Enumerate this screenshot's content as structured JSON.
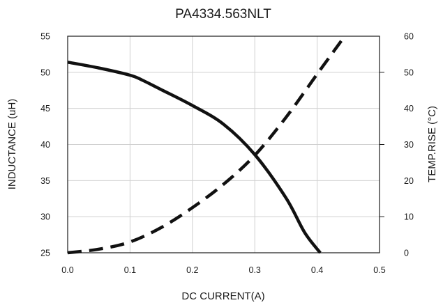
{
  "chart_data": {
    "type": "line",
    "title": "PA4334.563NLT",
    "xlabel": "DC CURRENT(A)",
    "ylabel_left": "INDUCTANCE (uH)",
    "ylabel_right": "TEMP.RISE (°C)",
    "x_ticks": [
      "0.0",
      "0.1",
      "0.2",
      "0.3",
      "0.4",
      "0.5"
    ],
    "y_left_ticks": [
      "25",
      "30",
      "35",
      "40",
      "45",
      "50",
      "55"
    ],
    "y_right_ticks": [
      "0",
      "10",
      "20",
      "30",
      "40",
      "50",
      "60"
    ],
    "xlim": [
      0,
      0.5
    ],
    "ylim_left": [
      25,
      55
    ],
    "ylim_right": [
      0,
      60
    ],
    "grid": true,
    "series": [
      {
        "axis": "left",
        "style": "solid",
        "x": [
          0,
          0.05,
          0.1,
          0.12,
          0.15,
          0.2,
          0.25,
          0.3,
          0.35,
          0.38,
          0.405
        ],
        "y": [
          51.4,
          50.6,
          49.6,
          48.9,
          47.6,
          45.4,
          42.8,
          38.6,
          32.6,
          27.8,
          25
        ]
      },
      {
        "axis": "right",
        "style": "dashed",
        "x": [
          0,
          0.05,
          0.1,
          0.15,
          0.2,
          0.25,
          0.3,
          0.35,
          0.4,
          0.44
        ],
        "y": [
          0,
          1,
          3,
          7,
          12.5,
          19,
          27,
          37.5,
          49.5,
          59
        ]
      }
    ]
  }
}
